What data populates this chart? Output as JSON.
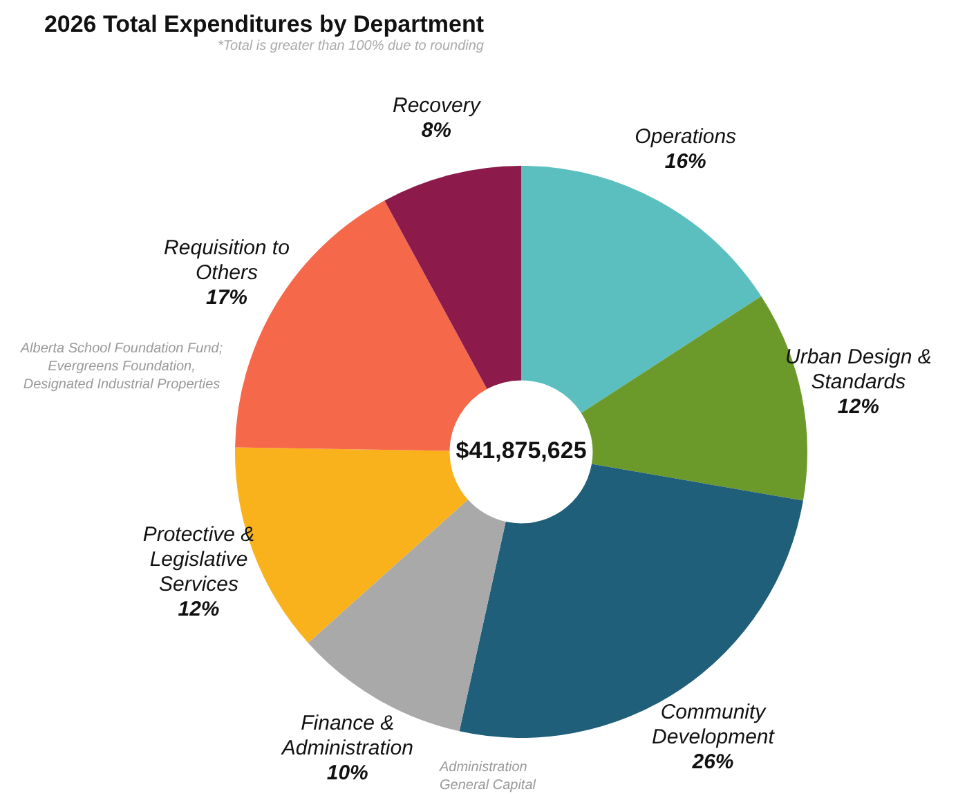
{
  "chart_data": {
    "type": "donut",
    "title": "2026 Total Expenditures by Department",
    "subtitle": "*Total is greater than 100% due to rounding",
    "categories": [
      "Operations",
      "Urban Design & Standards",
      "Community Development",
      "Finance & Administration",
      "Protective & Legislative Services",
      "Requisition to Others",
      "Recovery"
    ],
    "values": [
      16,
      12,
      26,
      10,
      12,
      17,
      8
    ],
    "colors": [
      "#5bbfbf",
      "#6b9a2a",
      "#1f5f7a",
      "#a9a9a9",
      "#f9b21c",
      "#f5694a",
      "#8c1a4a"
    ],
    "value_labels": [
      "16%",
      "12%",
      "26%",
      "10%",
      "12%",
      "17%",
      "8%"
    ],
    "legend": false,
    "annotations": [
      "$41,875,625",
      "Alberta School Foundation Fund; Evergreens Foundation, Designated Industrial Properties",
      "Administration General Capital"
    ]
  }
}
